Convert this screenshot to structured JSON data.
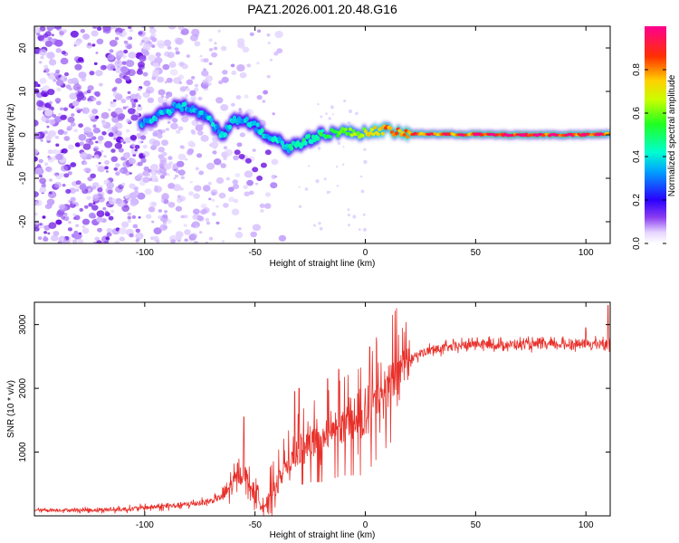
{
  "chart_data": [
    {
      "type": "heatmap",
      "title": "PAZ1.2026.001.20.48.G16",
      "xlabel": "Height of straight line (km)",
      "ylabel": "Frequency (Hz)",
      "xlim": [
        -150,
        111
      ],
      "ylim": [
        -25,
        25
      ],
      "xticks": [
        -100,
        -50,
        0,
        50,
        100
      ],
      "yticks": [
        -20,
        -10,
        0,
        10,
        20
      ],
      "ridge": [
        {
          "x": -100,
          "f": 3
        },
        {
          "x": -95,
          "f": 4
        },
        {
          "x": -90,
          "f": 5
        },
        {
          "x": -85,
          "f": 7
        },
        {
          "x": -80,
          "f": 6
        },
        {
          "x": -75,
          "f": 5
        },
        {
          "x": -70,
          "f": 3
        },
        {
          "x": -65,
          "f": 0
        },
        {
          "x": -60,
          "f": 3
        },
        {
          "x": -55,
          "f": 4
        },
        {
          "x": -50,
          "f": 2
        },
        {
          "x": -45,
          "f": 0
        },
        {
          "x": -40,
          "f": -1
        },
        {
          "x": -35,
          "f": -3
        },
        {
          "x": -30,
          "f": -2
        },
        {
          "x": -25,
          "f": -1
        },
        {
          "x": -20,
          "f": 0
        },
        {
          "x": -15,
          "f": 0.5
        },
        {
          "x": -10,
          "f": 0.8
        },
        {
          "x": -5,
          "f": 0.3
        },
        {
          "x": 0,
          "f": 0.5
        },
        {
          "x": 5,
          "f": 1
        },
        {
          "x": 10,
          "f": 1.2
        },
        {
          "x": 15,
          "f": 0.4
        },
        {
          "x": 20,
          "f": 0.2
        },
        {
          "x": 30,
          "f": 0.2
        },
        {
          "x": 40,
          "f": 0.1
        },
        {
          "x": 50,
          "f": 0.1
        },
        {
          "x": 60,
          "f": 0
        },
        {
          "x": 70,
          "f": 0
        },
        {
          "x": 80,
          "f": 0
        },
        {
          "x": 90,
          "f": 0
        },
        {
          "x": 100,
          "f": 0
        },
        {
          "x": 111,
          "f": 0.2
        }
      ],
      "ridge_amplitude": [
        {
          "x": -100,
          "a": 0.35
        },
        {
          "x": -60,
          "a": 0.35
        },
        {
          "x": -40,
          "a": 0.4
        },
        {
          "x": -10,
          "a": 0.55
        },
        {
          "x": 10,
          "a": 0.8
        },
        {
          "x": 40,
          "a": 0.85
        },
        {
          "x": 60,
          "a": 0.95
        },
        {
          "x": 111,
          "a": 0.9
        }
      ],
      "colorbar": {
        "label": "Normalized spectral amplitude",
        "range": [
          0,
          1
        ],
        "ticks": [
          "0.0",
          "0.2",
          "0.4",
          "0.6",
          "0.8"
        ]
      }
    },
    {
      "type": "line",
      "xlabel": "Height of straight line (km)",
      "ylabel": "SNR (10 * v/v)",
      "xlim": [
        -150,
        111
      ],
      "ylim": [
        0,
        3350
      ],
      "xticks": [
        -100,
        -50,
        0,
        50,
        100
      ],
      "yticks": [
        1000,
        2000,
        3000
      ],
      "color": "#e8302a",
      "series": [
        {
          "name": "SNR",
          "points": [
            {
              "x": -150,
              "y": 90
            },
            {
              "x": -130,
              "y": 90
            },
            {
              "x": -110,
              "y": 100
            },
            {
              "x": -100,
              "y": 130
            },
            {
              "x": -90,
              "y": 150
            },
            {
              "x": -80,
              "y": 180
            },
            {
              "x": -70,
              "y": 230
            },
            {
              "x": -65,
              "y": 300
            },
            {
              "x": -60,
              "y": 500
            },
            {
              "x": -57,
              "y": 650
            },
            {
              "x": -55,
              "y": 700
            },
            {
              "x": -52,
              "y": 450
            },
            {
              "x": -48,
              "y": 250
            },
            {
              "x": -45,
              "y": 180
            },
            {
              "x": -42,
              "y": 350
            },
            {
              "x": -38,
              "y": 650
            },
            {
              "x": -35,
              "y": 800
            },
            {
              "x": -30,
              "y": 1050
            },
            {
              "x": -25,
              "y": 1150
            },
            {
              "x": -20,
              "y": 1200
            },
            {
              "x": -15,
              "y": 1300
            },
            {
              "x": -10,
              "y": 1400
            },
            {
              "x": -5,
              "y": 1450
            },
            {
              "x": 0,
              "y": 1500
            },
            {
              "x": 5,
              "y": 1800
            },
            {
              "x": 10,
              "y": 2050
            },
            {
              "x": 15,
              "y": 2300
            },
            {
              "x": 20,
              "y": 2450
            },
            {
              "x": 25,
              "y": 2550
            },
            {
              "x": 30,
              "y": 2600
            },
            {
              "x": 40,
              "y": 2650
            },
            {
              "x": 50,
              "y": 2700
            },
            {
              "x": 60,
              "y": 2680
            },
            {
              "x": 70,
              "y": 2690
            },
            {
              "x": 80,
              "y": 2680
            },
            {
              "x": 90,
              "y": 2690
            },
            {
              "x": 100,
              "y": 2700
            },
            {
              "x": 111,
              "y": 2700
            }
          ],
          "peaks": [
            {
              "x": -55,
              "y": 1550
            },
            {
              "x": -32,
              "y": 1950
            },
            {
              "x": -30,
              "y": 2000
            },
            {
              "x": -17,
              "y": 2150
            },
            {
              "x": -12,
              "y": 2300
            },
            {
              "x": 2,
              "y": 2650
            },
            {
              "x": 5,
              "y": 2800
            },
            {
              "x": 100,
              "y": 2950
            },
            {
              "x": 110,
              "y": 3300
            }
          ]
        }
      ]
    }
  ]
}
